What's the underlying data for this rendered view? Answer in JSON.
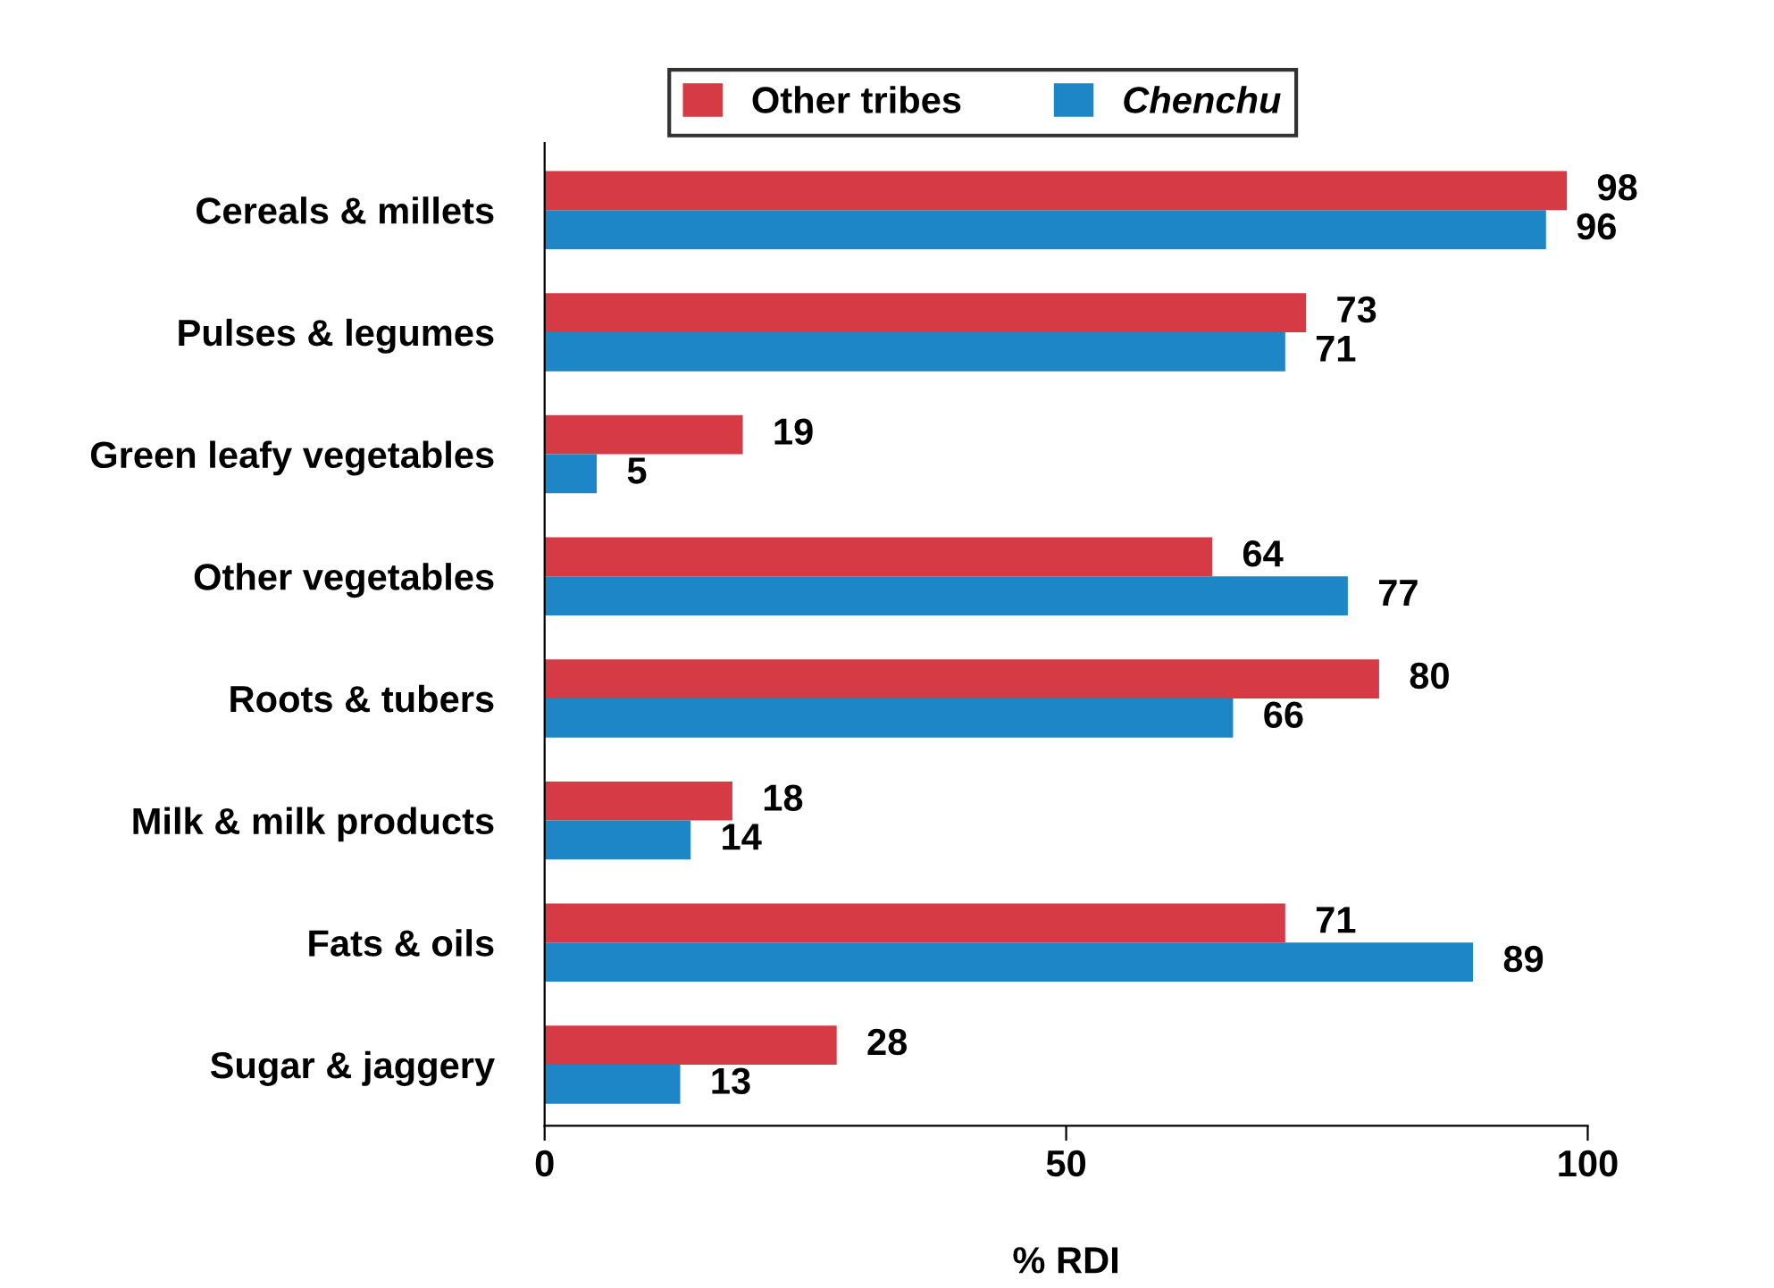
{
  "chart_data": {
    "type": "bar",
    "orientation": "horizontal",
    "xlabel": "% RDI",
    "categories": [
      "Cereals & millets",
      "Pulses & legumes",
      "Green leafy vegetables",
      "Other vegetables",
      "Roots & tubers",
      "Milk & milk products",
      "Fats & oils",
      "Sugar & jaggery"
    ],
    "series": [
      {
        "name": "Other tribes",
        "color": "#d63a44",
        "values": [
          98,
          73,
          19,
          64,
          80,
          18,
          71,
          28
        ]
      },
      {
        "name": "Chenchu",
        "color": "#1c86c6",
        "values": [
          96,
          71,
          5,
          77,
          66,
          14,
          89,
          13
        ]
      }
    ],
    "xlim": [
      0,
      100
    ],
    "xticks": [
      0,
      50,
      100
    ],
    "data_labels": true,
    "legend": "top",
    "grid": false
  }
}
